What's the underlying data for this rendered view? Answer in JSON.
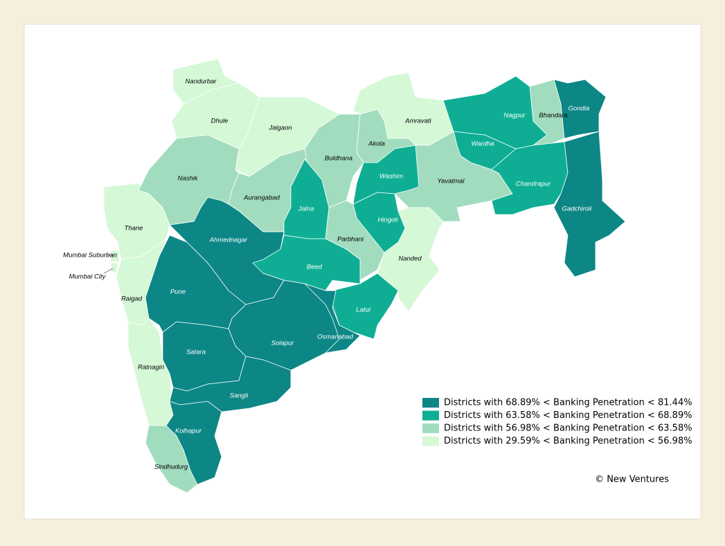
{
  "map": {
    "groups": [
      {
        "label": "Districts with 68.89% < Banking Penetration < 81.44%",
        "color": "#0d8686",
        "districts": [
          "Gondia",
          "Gadchiroli",
          "Ahmednagar",
          "Pune",
          "Solapur",
          "Osmanabad",
          "Satara",
          "Sangli",
          "Kolhapur"
        ]
      },
      {
        "label": "Districts with 63.58% < Banking Penetration < 68.89%",
        "color": "#0fae94",
        "districts": [
          "Nagpur",
          "Wardha",
          "Chandrapur",
          "Washim",
          "Hingoli",
          "Jalna",
          "Beed",
          "Latur"
        ]
      },
      {
        "label": "Districts with 56.98% < Banking Penetration < 63.58%",
        "color": "#a2dcbf",
        "districts": [
          "Bhandara",
          "Buldhana",
          "Akola",
          "Nashik",
          "Aurangabad",
          "Parbhani",
          "Yavatmal",
          "Sindhudurg"
        ]
      },
      {
        "label": "Districts with 29.59% < Banking Penetration < 56.98%",
        "color": "#d5f8d7",
        "districts": [
          "Nandurbar",
          "Dhule",
          "Jalgaon",
          "Amravati",
          "Thane",
          "Mumbai Suburban",
          "Mumbai City",
          "Raigad",
          "Ratnagiri",
          "Nanded"
        ]
      }
    ],
    "credit": "© New Ventures"
  }
}
